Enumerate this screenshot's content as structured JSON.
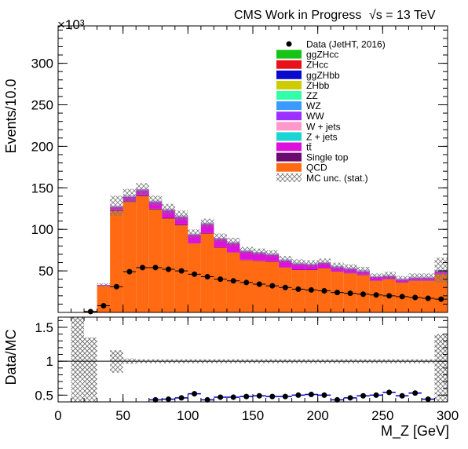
{
  "header": {
    "left": "CMS Work in Progress",
    "right": "√s = 13 TeV"
  },
  "chart_data": {
    "type": "bar",
    "subtype": "stacked-histogram-with-ratio",
    "x": [
      5,
      15,
      25,
      35,
      45,
      55,
      65,
      75,
      85,
      95,
      105,
      115,
      125,
      135,
      145,
      155,
      165,
      175,
      185,
      195,
      205,
      215,
      225,
      235,
      245,
      255,
      265,
      275,
      285,
      295
    ],
    "xlabel": "M_Z [GeV]",
    "xlim": [
      0,
      300
    ],
    "xticks": [
      0,
      50,
      100,
      150,
      200,
      250,
      300
    ],
    "top": {
      "ylabel": "Events/10.0",
      "exponent_label": "×10³",
      "scale": 1000,
      "ylim": [
        0,
        345
      ],
      "yticks": [
        50,
        100,
        150,
        200,
        250,
        300
      ],
      "series": [
        {
          "name": "QCD",
          "color": "#ff6a13",
          "values": [
            0,
            0,
            2,
            32,
            122,
            133,
            140,
            124,
            113,
            105,
            83,
            95,
            78,
            72,
            63,
            62,
            61,
            54,
            51,
            51,
            53,
            49,
            47,
            45,
            38,
            40,
            36,
            38,
            38,
            46
          ]
        },
        {
          "name": "Single top",
          "color": "#6b0a6f",
          "values": [
            0,
            0,
            0,
            0,
            1,
            1,
            1,
            1,
            1,
            1,
            0.5,
            0.5,
            0.5,
            0.5,
            0.5,
            0.5,
            0.5,
            0.5,
            0.5,
            0.5,
            0.5,
            0.5,
            0.5,
            0.5,
            0.5,
            0.5,
            0.5,
            0.5,
            0.5,
            0.5
          ]
        },
        {
          "name": "tt̄",
          "color": "#dd10dd",
          "values": [
            0,
            0,
            0,
            1,
            4,
            5,
            6,
            8,
            9,
            9,
            10,
            11,
            10,
            11,
            10,
            9,
            8,
            8,
            7,
            6,
            6,
            5,
            5,
            4,
            4,
            3,
            3,
            3,
            3,
            3
          ]
        },
        {
          "name": "Z + jets",
          "color": "#1cd4d4",
          "values": [
            0,
            0,
            0,
            0,
            0.3,
            0.4,
            0.4,
            0.4,
            0.4,
            0.4,
            0.3,
            0.3,
            0.3,
            0.3,
            0.3,
            0.3,
            0.3,
            0.3,
            0.3,
            0.3,
            0.3,
            0.3,
            0.3,
            0.3,
            0.3,
            0.3,
            0.3,
            0.3,
            0.3,
            0.3
          ]
        },
        {
          "name": "W + jets",
          "color": "#ff99cc",
          "values": [
            0,
            0,
            0,
            0,
            0.5,
            0.6,
            0.6,
            0.6,
            0.6,
            0.6,
            0.5,
            0.5,
            0.5,
            0.5,
            0.5,
            0.5,
            0.5,
            0.5,
            0.5,
            0.5,
            0.5,
            0.5,
            0.5,
            0.5,
            0.5,
            0.5,
            0.5,
            0.5,
            0.5,
            0.5
          ]
        },
        {
          "name": "WW",
          "color": "#9b30ff",
          "values": [
            0,
            0,
            0,
            0,
            0.3,
            0.4,
            0.4,
            0.4,
            0.4,
            0.4,
            0.3,
            0.3,
            0.3,
            0.3,
            0.3,
            0.3,
            0.3,
            0.3,
            0.3,
            0.3,
            0.3,
            0.3,
            0.3,
            0.3,
            0.3,
            0.3,
            0.3,
            0.3,
            0.3,
            0.3
          ]
        },
        {
          "name": "WZ",
          "color": "#3a9bff",
          "values": [
            0,
            0,
            0,
            0,
            0.2,
            0.2,
            0.2,
            0.2,
            0.2,
            0.2,
            0.2,
            0.2,
            0.2,
            0.2,
            0.2,
            0.2,
            0.2,
            0.2,
            0.2,
            0.2,
            0.2,
            0.2,
            0.2,
            0.2,
            0.2,
            0.2,
            0.2,
            0.2,
            0.2,
            0.2
          ]
        },
        {
          "name": "ZZ",
          "color": "#33ffaa",
          "values": [
            0,
            0,
            0,
            0,
            0.1,
            0.1,
            0.1,
            0.1,
            0.1,
            0.1,
            0.1,
            0.1,
            0.1,
            0.1,
            0.1,
            0.1,
            0.1,
            0.1,
            0.1,
            0.1,
            0.1,
            0.1,
            0.1,
            0.1,
            0.1,
            0.1,
            0.1,
            0.1,
            0.1,
            0.1
          ]
        },
        {
          "name": "ZHbb",
          "color": "#cccc00",
          "values": [
            0,
            0,
            0,
            0,
            0,
            0,
            0,
            0,
            0,
            0,
            0,
            0,
            0,
            0,
            0,
            0,
            0,
            0,
            0,
            0,
            0,
            0,
            0,
            0,
            0,
            0,
            0,
            0,
            0,
            0
          ]
        },
        {
          "name": "ggZHbb",
          "color": "#0a0acc",
          "values": [
            0,
            0,
            0,
            0,
            0,
            0,
            0,
            0,
            0,
            0,
            0,
            0,
            0,
            0,
            0,
            0,
            0,
            0,
            0,
            0,
            0,
            0,
            0,
            0,
            0,
            0,
            0,
            0,
            0,
            0
          ]
        },
        {
          "name": "ZHcc",
          "color": "#e8121b",
          "values": [
            0,
            0,
            0,
            0,
            0,
            0,
            0,
            0,
            0,
            0,
            0,
            0,
            0,
            0,
            0,
            0,
            0,
            0,
            0,
            0,
            0,
            0,
            0,
            0,
            0,
            0,
            0,
            0,
            0,
            0
          ]
        },
        {
          "name": "ggZHcc",
          "color": "#16c416",
          "values": [
            0,
            0,
            0,
            0,
            0,
            0,
            0,
            0,
            0,
            0,
            0,
            0,
            0,
            0,
            0,
            0,
            0,
            0,
            0,
            0,
            0,
            0,
            0,
            0,
            0,
            0,
            0,
            0,
            0,
            0
          ]
        }
      ],
      "mc_unc": [
        0,
        0,
        0,
        2,
        12,
        8,
        7,
        6,
        6,
        6,
        5,
        5,
        5,
        5,
        4,
        4,
        4,
        4,
        4,
        4,
        4,
        4,
        4,
        4,
        3,
        4,
        3,
        4,
        4,
        15
      ],
      "data": {
        "name": "Data (JetHT, 2016)",
        "values": [
          0,
          0,
          1,
          8,
          31,
          49,
          54,
          54,
          52,
          50,
          46,
          43,
          40,
          38,
          36,
          34,
          32,
          30,
          28,
          27,
          26,
          24,
          23,
          22,
          21,
          20,
          19,
          18,
          17,
          16
        ]
      }
    },
    "ratio": {
      "ylabel": "Data/MC",
      "ylim": [
        0.4,
        1.65
      ],
      "yticks": [
        0.5,
        1,
        1.5
      ],
      "reference_line": 1,
      "unc_low": [
        0.4,
        0.4,
        0.4,
        0.4,
        1.0,
        0.4,
        0.4,
        0.4,
        0.4,
        0.4,
        0.4,
        0.4,
        0.4,
        0.4,
        0.4,
        0.4,
        0.4,
        0.4,
        0.4,
        0.4,
        0.4,
        0.4,
        0.4,
        0.4,
        0.4,
        0.4,
        0.4,
        0.4,
        0.4,
        0.4
      ],
      "unc_high": [
        0.4,
        1.65,
        1.35,
        0.4,
        1.16,
        0.4,
        0.4,
        0.4,
        0.4,
        0.4,
        0.4,
        0.4,
        0.4,
        0.4,
        0.4,
        0.4,
        0.4,
        0.4,
        0.4,
        0.4,
        0.4,
        0.4,
        0.4,
        0.4,
        0.4,
        0.4,
        0.4,
        0.4,
        0.4,
        1.4
      ],
      "band_low": [
        null,
        0.75,
        0.5,
        null,
        0.83,
        1.04,
        1.03,
        1.03,
        1.03,
        1.03,
        1.03,
        1.03,
        1.03,
        1.03,
        1.03,
        1.03,
        1.03,
        1.03,
        1.03,
        1.03,
        1.03,
        1.03,
        1.03,
        1.03,
        1.03,
        1.03,
        1.03,
        1.03,
        1.03,
        0.66
      ],
      "band_high": [
        null,
        1.65,
        1.35,
        null,
        1.16,
        0.96,
        0.97,
        0.97,
        0.97,
        0.97,
        0.97,
        0.97,
        0.97,
        0.97,
        0.97,
        0.97,
        0.97,
        0.97,
        0.97,
        0.97,
        0.97,
        0.97,
        0.97,
        0.97,
        0.97,
        0.97,
        0.97,
        0.97,
        0.97,
        1.4
      ],
      "values": [
        null,
        null,
        null,
        null,
        null,
        null,
        null,
        0.43,
        0.44,
        0.46,
        0.52,
        0.43,
        0.47,
        0.47,
        0.48,
        0.49,
        0.48,
        0.48,
        0.5,
        0.51,
        0.5,
        0.43,
        0.46,
        0.49,
        0.5,
        0.54,
        0.49,
        0.53,
        0.44,
        null
      ]
    },
    "legend": {
      "position": "top-right",
      "entries": [
        {
          "label": "Data (JetHT, 2016)",
          "kind": "marker"
        },
        {
          "label": "ggZHcc",
          "kind": "fill",
          "color": "#16c416"
        },
        {
          "label": "ZHcc",
          "kind": "fill",
          "color": "#e8121b"
        },
        {
          "label": "ggZHbb",
          "kind": "fill",
          "color": "#0a0acc"
        },
        {
          "label": "ZHbb",
          "kind": "fill",
          "color": "#cccc00"
        },
        {
          "label": "ZZ",
          "kind": "fill",
          "color": "#33ffaa"
        },
        {
          "label": "WZ",
          "kind": "fill",
          "color": "#3a9bff"
        },
        {
          "label": "WW",
          "kind": "fill",
          "color": "#9b30ff"
        },
        {
          "label": "W + jets",
          "kind": "fill",
          "color": "#ff99cc"
        },
        {
          "label": "Z + jets",
          "kind": "fill",
          "color": "#1cd4d4"
        },
        {
          "label": "tt̄",
          "kind": "fill",
          "color": "#dd10dd"
        },
        {
          "label": "Single top",
          "kind": "fill",
          "color": "#6b0a6f"
        },
        {
          "label": "QCD",
          "kind": "fill",
          "color": "#ff6a13"
        },
        {
          "label": "MC unc. (stat.)",
          "kind": "hatch"
        }
      ]
    }
  }
}
